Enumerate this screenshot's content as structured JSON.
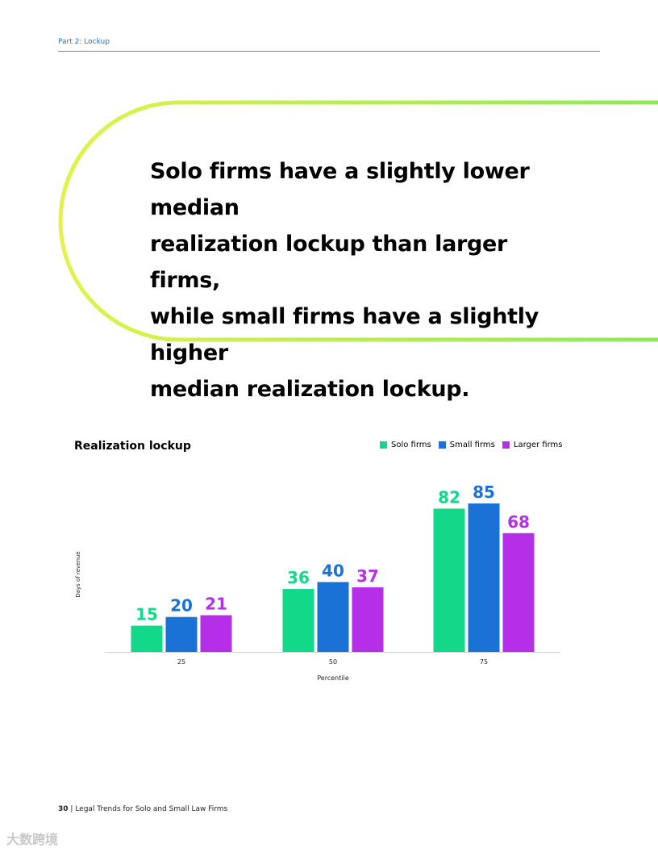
{
  "header": {
    "section_label": "Part 2: Lockup"
  },
  "callout": {
    "lines": [
      "Solo firms have a slightly lower median",
      "realization lockup than larger firms,",
      "while small firms have a slightly higher",
      "median realization lockup."
    ]
  },
  "colors": {
    "solo": "#12d98a",
    "small": "#1a72d6",
    "larger": "#b52ee8",
    "callout_gradient_start": "#e2f24a",
    "callout_gradient_end": "#8fe85a",
    "header_rule": "#4a90e2"
  },
  "chart_data": {
    "type": "bar",
    "title": "Realization lockup",
    "xlabel": "Percentile",
    "ylabel": "Days of revenue",
    "categories": [
      "25",
      "50",
      "75"
    ],
    "series": [
      {
        "name": "Solo firms",
        "values": [
          15,
          36,
          82
        ],
        "color": "#12d98a"
      },
      {
        "name": "Small firms",
        "values": [
          20,
          40,
          85
        ],
        "color": "#1a72d6"
      },
      {
        "name": "Larger firms",
        "values": [
          21,
          37,
          68
        ],
        "color": "#b52ee8"
      }
    ],
    "ylim": [
      0,
      85
    ],
    "legend_position": "top-right",
    "grid": false
  },
  "footer": {
    "page_number": "30",
    "separator": "|",
    "publication": "Legal Trends for Solo and Small Law Firms"
  },
  "watermark": {
    "text": "大数跨境"
  }
}
